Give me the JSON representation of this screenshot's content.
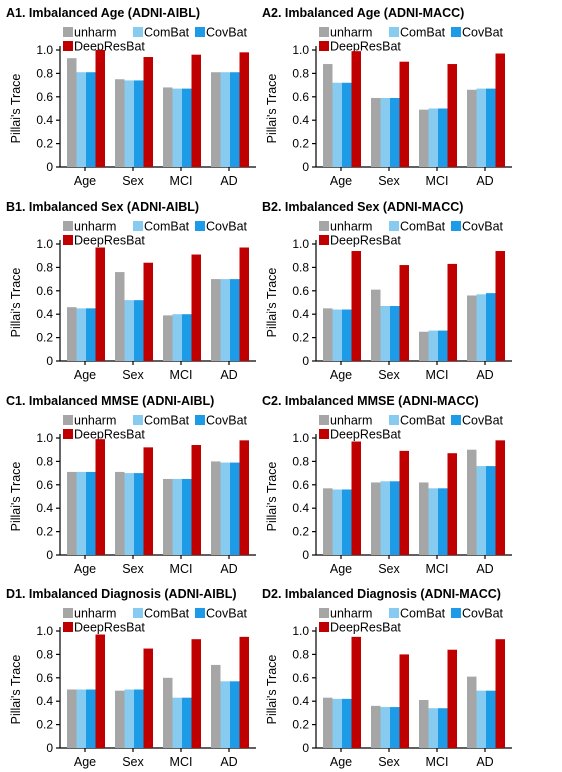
{
  "colors": {
    "unharm": "#a6a6a6",
    "ComBat": "#87cbf0",
    "CovBat": "#1e9be6",
    "DeepResBat": "#c00000"
  },
  "chart_data": [
    {
      "type": "bar",
      "title": "A1. Imbalanced Age (ADNI-AIBL)",
      "ylabel": "Pillai's Trace",
      "xlabel": "",
      "ylim": [
        0,
        1.0
      ],
      "yticks": [
        "0",
        "0.2",
        "0.4",
        "0.6",
        "0.8",
        "1.0"
      ],
      "categories": [
        "Age",
        "Sex",
        "MCI",
        "AD"
      ],
      "legend_position": "top",
      "series": [
        {
          "name": "unharm",
          "values": [
            0.93,
            0.75,
            0.68,
            0.81
          ]
        },
        {
          "name": "ComBat",
          "values": [
            0.81,
            0.74,
            0.67,
            0.81
          ]
        },
        {
          "name": "CovBat",
          "values": [
            0.81,
            0.74,
            0.67,
            0.81
          ]
        },
        {
          "name": "DeepResBat",
          "values": [
            1.0,
            0.94,
            0.96,
            0.98
          ]
        }
      ]
    },
    {
      "type": "bar",
      "title": "A2. Imbalanced Age (ADNI-MACC)",
      "ylabel": "Pillai's Trace",
      "xlabel": "",
      "ylim": [
        0,
        1.0
      ],
      "yticks": [
        "0",
        "0.2",
        "0.4",
        "0.6",
        "0.8",
        "1.0"
      ],
      "categories": [
        "Age",
        "Sex",
        "MCI",
        "AD"
      ],
      "legend_position": "top",
      "series": [
        {
          "name": "unharm",
          "values": [
            0.88,
            0.59,
            0.49,
            0.66
          ]
        },
        {
          "name": "ComBat",
          "values": [
            0.72,
            0.59,
            0.5,
            0.67
          ]
        },
        {
          "name": "CovBat",
          "values": [
            0.72,
            0.59,
            0.5,
            0.67
          ]
        },
        {
          "name": "DeepResBat",
          "values": [
            0.99,
            0.9,
            0.88,
            0.97
          ]
        }
      ]
    },
    {
      "type": "bar",
      "title": "B1. Imbalanced Sex (ADNI-AIBL)",
      "ylabel": "Pillai's Trace",
      "xlabel": "",
      "ylim": [
        0,
        1.0
      ],
      "yticks": [
        "0",
        "0.2",
        "0.4",
        "0.6",
        "0.8",
        "1.0"
      ],
      "categories": [
        "Age",
        "Sex",
        "MCI",
        "AD"
      ],
      "legend_position": "top",
      "series": [
        {
          "name": "unharm",
          "values": [
            0.46,
            0.76,
            0.39,
            0.7
          ]
        },
        {
          "name": "ComBat",
          "values": [
            0.45,
            0.52,
            0.4,
            0.7
          ]
        },
        {
          "name": "CovBat",
          "values": [
            0.45,
            0.52,
            0.4,
            0.7
          ]
        },
        {
          "name": "DeepResBat",
          "values": [
            0.97,
            0.84,
            0.91,
            0.97
          ]
        }
      ]
    },
    {
      "type": "bar",
      "title": "B2. Imbalanced Sex (ADNI-MACC)",
      "ylabel": "Pillai's Trace",
      "xlabel": "",
      "ylim": [
        0,
        1.0
      ],
      "yticks": [
        "0",
        "0.2",
        "0.4",
        "0.6",
        "0.8",
        "1.0"
      ],
      "categories": [
        "Age",
        "Sex",
        "MCI",
        "AD"
      ],
      "legend_position": "top",
      "series": [
        {
          "name": "unharm",
          "values": [
            0.45,
            0.61,
            0.25,
            0.56
          ]
        },
        {
          "name": "ComBat",
          "values": [
            0.44,
            0.47,
            0.26,
            0.57
          ]
        },
        {
          "name": "CovBat",
          "values": [
            0.44,
            0.47,
            0.26,
            0.58
          ]
        },
        {
          "name": "DeepResBat",
          "values": [
            0.94,
            0.82,
            0.83,
            0.94
          ]
        }
      ]
    },
    {
      "type": "bar",
      "title": "C1. Imbalanced MMSE (ADNI-AIBL)",
      "ylabel": "Pillai's Trace",
      "xlabel": "",
      "ylim": [
        0,
        1.0
      ],
      "yticks": [
        "0",
        "0.2",
        "0.4",
        "0.6",
        "0.8",
        "1.0"
      ],
      "categories": [
        "Age",
        "Sex",
        "MCI",
        "AD"
      ],
      "legend_position": "top",
      "series": [
        {
          "name": "unharm",
          "values": [
            0.71,
            0.71,
            0.65,
            0.8
          ]
        },
        {
          "name": "ComBat",
          "values": [
            0.71,
            0.7,
            0.65,
            0.79
          ]
        },
        {
          "name": "CovBat",
          "values": [
            0.71,
            0.7,
            0.65,
            0.79
          ]
        },
        {
          "name": "DeepResBat",
          "values": [
            0.99,
            0.92,
            0.94,
            0.98
          ]
        }
      ]
    },
    {
      "type": "bar",
      "title": "C2. Imbalanced MMSE (ADNI-MACC)",
      "ylabel": "Pillai's Trace",
      "xlabel": "",
      "ylim": [
        0,
        1.0
      ],
      "yticks": [
        "0",
        "0.2",
        "0.4",
        "0.6",
        "0.8",
        "1.0"
      ],
      "categories": [
        "Age",
        "Sex",
        "MCI",
        "AD"
      ],
      "legend_position": "top",
      "series": [
        {
          "name": "unharm",
          "values": [
            0.57,
            0.62,
            0.62,
            0.9
          ]
        },
        {
          "name": "ComBat",
          "values": [
            0.56,
            0.63,
            0.57,
            0.76
          ]
        },
        {
          "name": "CovBat",
          "values": [
            0.56,
            0.63,
            0.57,
            0.76
          ]
        },
        {
          "name": "DeepResBat",
          "values": [
            0.97,
            0.89,
            0.87,
            0.98
          ]
        }
      ]
    },
    {
      "type": "bar",
      "title": "D1. Imbalanced Diagnosis (ADNI-AIBL)",
      "ylabel": "Pillai's Trace",
      "xlabel": "",
      "ylim": [
        0,
        1.0
      ],
      "yticks": [
        "0",
        "0.2",
        "0.4",
        "0.6",
        "0.8",
        "1.0"
      ],
      "categories": [
        "Age",
        "Sex",
        "MCI",
        "AD"
      ],
      "legend_position": "top",
      "series": [
        {
          "name": "unharm",
          "values": [
            0.5,
            0.49,
            0.6,
            0.71
          ]
        },
        {
          "name": "ComBat",
          "values": [
            0.5,
            0.5,
            0.43,
            0.57
          ]
        },
        {
          "name": "CovBat",
          "values": [
            0.5,
            0.5,
            0.43,
            0.57
          ]
        },
        {
          "name": "DeepResBat",
          "values": [
            0.97,
            0.85,
            0.93,
            0.95
          ]
        }
      ]
    },
    {
      "type": "bar",
      "title": "D2. Imbalanced Diagnosis (ADNI-MACC)",
      "ylabel": "Pillai's Trace",
      "xlabel": "",
      "ylim": [
        0,
        1.0
      ],
      "yticks": [
        "0",
        "0.2",
        "0.4",
        "0.6",
        "0.8",
        "1.0"
      ],
      "categories": [
        "Age",
        "Sex",
        "MCI",
        "AD"
      ],
      "legend_position": "top",
      "series": [
        {
          "name": "unharm",
          "values": [
            0.43,
            0.36,
            0.41,
            0.61
          ]
        },
        {
          "name": "ComBat",
          "values": [
            0.42,
            0.35,
            0.34,
            0.49
          ]
        },
        {
          "name": "CovBat",
          "values": [
            0.42,
            0.35,
            0.34,
            0.49
          ]
        },
        {
          "name": "DeepResBat",
          "values": [
            0.95,
            0.8,
            0.84,
            0.93
          ]
        }
      ]
    }
  ]
}
